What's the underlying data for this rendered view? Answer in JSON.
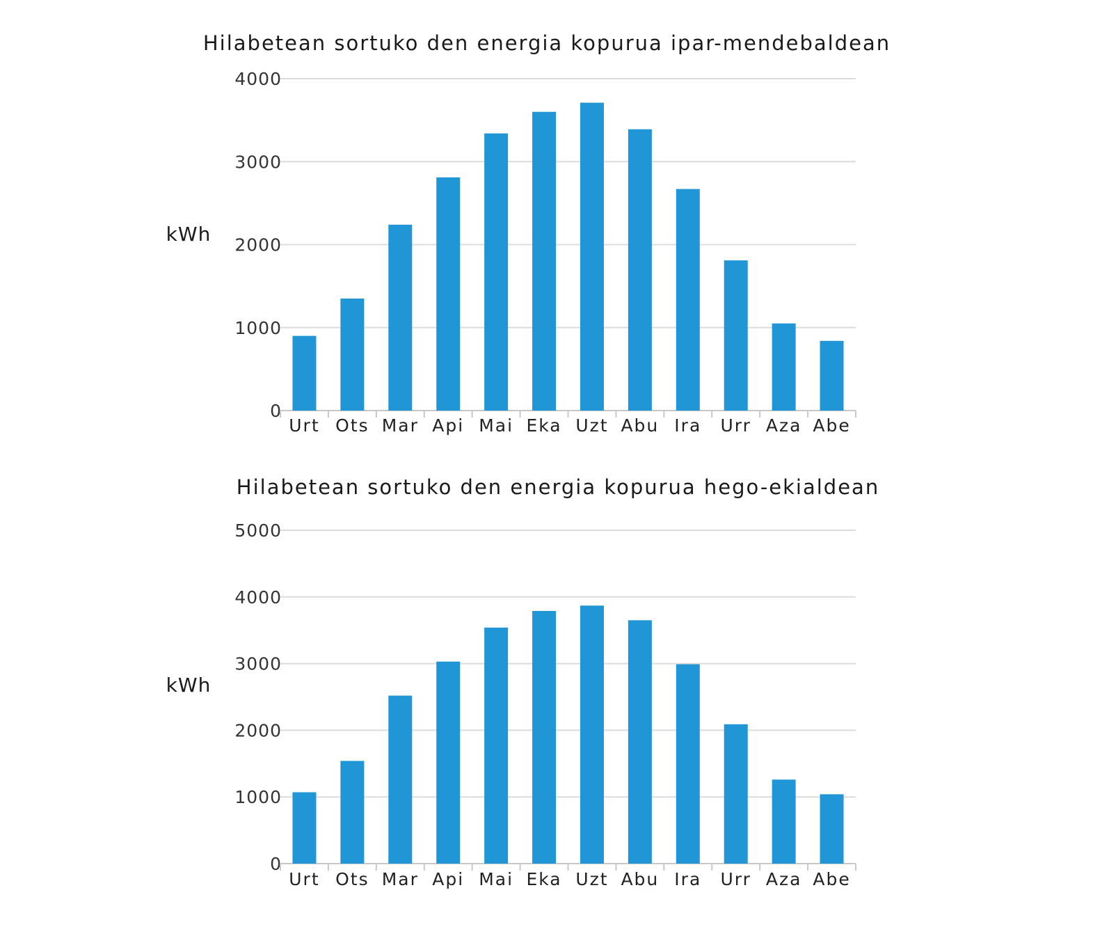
{
  "colors": {
    "bar": "#2196d6",
    "grid": "#dcdcdc",
    "text": "#1a1a1a"
  },
  "chart_data": [
    {
      "type": "bar",
      "title": "Hilabetean sortuko den energia kopurua ipar-mendebaldean",
      "xlabel": "",
      "ylabel": "kWh",
      "ylim": [
        0,
        4000
      ],
      "yticks": [
        0,
        1000,
        2000,
        3000,
        4000
      ],
      "grid": true,
      "categories": [
        "Urt",
        "Ots",
        "Mar",
        "Api",
        "Mai",
        "Eka",
        "Uzt",
        "Abu",
        "Ira",
        "Urr",
        "Aza",
        "Abe"
      ],
      "values": [
        900,
        1350,
        2240,
        2810,
        3340,
        3600,
        3710,
        3390,
        2670,
        1810,
        1050,
        840
      ]
    },
    {
      "type": "bar",
      "title": "Hilabetean sortuko den energia kopurua hego-ekialdean",
      "xlabel": "",
      "ylabel": "kWh",
      "ylim": [
        0,
        5000
      ],
      "yticks": [
        0,
        1000,
        2000,
        3000,
        4000,
        5000
      ],
      "grid": true,
      "categories": [
        "Urt",
        "Ots",
        "Mar",
        "Api",
        "Mai",
        "Eka",
        "Uzt",
        "Abu",
        "Ira",
        "Urr",
        "Aza",
        "Abe"
      ],
      "values": [
        1070,
        1540,
        2520,
        3030,
        3540,
        3790,
        3870,
        3650,
        2990,
        2090,
        1260,
        1040
      ]
    }
  ]
}
